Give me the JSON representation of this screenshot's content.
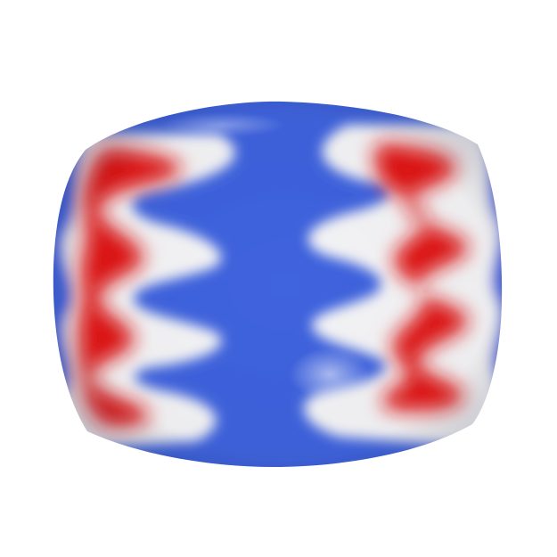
{
  "scene": {
    "subject": "chevron-glass-bead",
    "background_color": "#ffffff",
    "colors": {
      "body_blue": "#3f63de",
      "band_white": "#f4f4f6",
      "accent_red": "#e01616",
      "shadow_blue": "#2a47b8",
      "highlight": "#ffffff"
    }
  }
}
